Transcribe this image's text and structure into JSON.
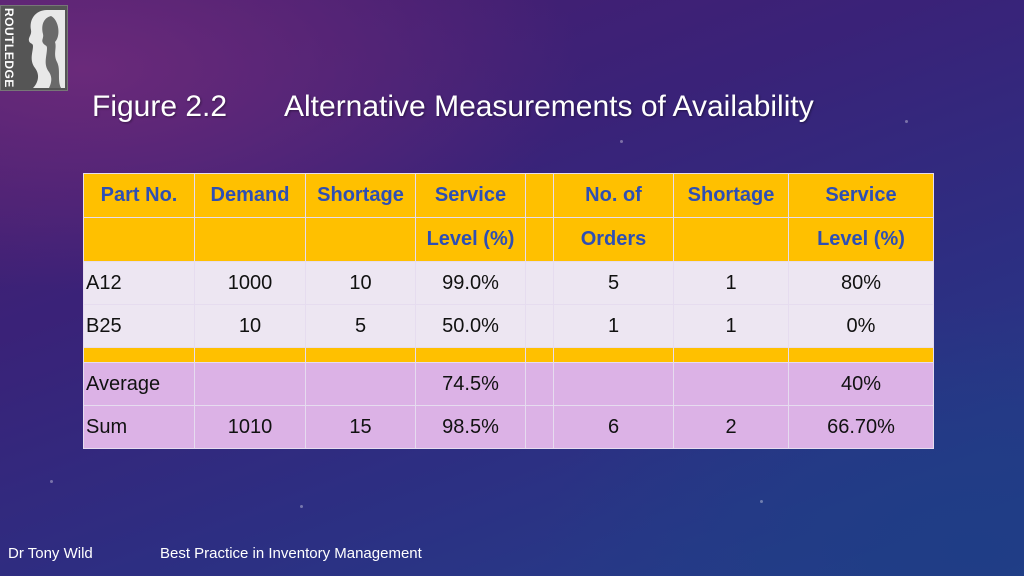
{
  "slide": {
    "figure_label": "Figure 2.2",
    "title": "Alternative Measurements of Availability"
  },
  "logo": {
    "text": "ROUTLEDGE"
  },
  "table": {
    "header_row1": [
      "Part No.",
      "Demand",
      "Shortage",
      "Service",
      "",
      "No. of",
      "Shortage",
      "Service"
    ],
    "header_row2": [
      "",
      "",
      "",
      "Level (%)",
      "",
      "Orders",
      "",
      "Level (%)"
    ],
    "rows": [
      [
        "A12",
        "1000",
        "10",
        "99.0%",
        "",
        "5",
        "1",
        "80%"
      ],
      [
        "B25",
        "10",
        "5",
        "50.0%",
        "",
        "1",
        "1",
        "0%"
      ]
    ],
    "summary_rows": [
      [
        "Average",
        "",
        "",
        "74.5%",
        "",
        "",
        "",
        "40%"
      ],
      [
        "Sum",
        "1010",
        "15",
        "98.5%",
        "",
        "6",
        "2",
        "66.70%"
      ]
    ]
  },
  "footer": {
    "author": "Dr Tony Wild",
    "book": "Best Practice in Inventory Management"
  },
  "colors": {
    "header_bg": "#ffc000",
    "header_text": "#2e4fb4",
    "row_bg": "#ede6f2",
    "summary_bg": "#dcb2e6"
  }
}
